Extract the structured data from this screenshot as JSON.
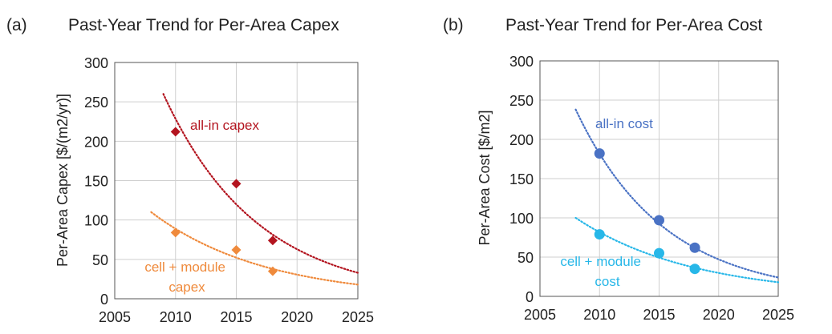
{
  "chart_data": [
    {
      "type": "scatter",
      "panel_label": "(a)",
      "title": "Past-Year Trend for Per-Area Capex",
      "xlabel": "",
      "ylabel": "Per-Area Capex [$/(m2/yr)]",
      "xlim": [
        2005,
        2025
      ],
      "ylim": [
        0,
        300
      ],
      "xticks": [
        2005,
        2010,
        2015,
        2020,
        2025
      ],
      "yticks": [
        0,
        50,
        100,
        150,
        200,
        250,
        300
      ],
      "grid": true,
      "series": [
        {
          "name": "all-in capex",
          "label_lines": [
            "all-in capex"
          ],
          "marker": "diamond",
          "color": "#b3141f",
          "points": [
            [
              2010,
              212
            ],
            [
              2015,
              146
            ],
            [
              2018,
              74
            ]
          ],
          "trend": {
            "type": "exponential",
            "points": [
              [
                2009,
                260
              ],
              [
                2025,
                33
              ]
            ]
          }
        },
        {
          "name": "cell + module capex",
          "label_lines": [
            "cell + module",
            "capex"
          ],
          "marker": "diamond",
          "color": "#ef8a3c",
          "points": [
            [
              2010,
              84
            ],
            [
              2015,
              62
            ],
            [
              2018,
              35
            ]
          ],
          "trend": {
            "type": "exponential",
            "points": [
              [
                2008,
                110
              ],
              [
                2025,
                18
              ]
            ]
          }
        }
      ]
    },
    {
      "type": "scatter",
      "panel_label": "(b)",
      "title": "Past-Year Trend for Per-Area Cost",
      "xlabel": "",
      "ylabel": "Per-Area Cost [$/m2]",
      "xlim": [
        2005,
        2025
      ],
      "ylim": [
        0,
        300
      ],
      "xticks": [
        2005,
        2010,
        2015,
        2020,
        2025
      ],
      "yticks": [
        0,
        50,
        100,
        150,
        200,
        250,
        300
      ],
      "grid": true,
      "series": [
        {
          "name": "all-in cost",
          "label_lines": [
            "all-in cost"
          ],
          "marker": "circle",
          "color": "#4a72c4",
          "points": [
            [
              2010,
              182
            ],
            [
              2015,
              97
            ],
            [
              2018,
              62
            ]
          ],
          "trend": {
            "type": "exponential",
            "points": [
              [
                2008,
                238
              ],
              [
                2025,
                24
              ]
            ]
          }
        },
        {
          "name": "cell + module cost",
          "label_lines": [
            "cell + module",
            "cost"
          ],
          "marker": "circle",
          "color": "#27b7e8",
          "points": [
            [
              2010,
              79
            ],
            [
              2015,
              55
            ],
            [
              2018,
              35
            ]
          ],
          "trend": {
            "type": "exponential",
            "points": [
              [
                2008,
                100
              ],
              [
                2025,
                18
              ]
            ]
          }
        }
      ]
    }
  ]
}
